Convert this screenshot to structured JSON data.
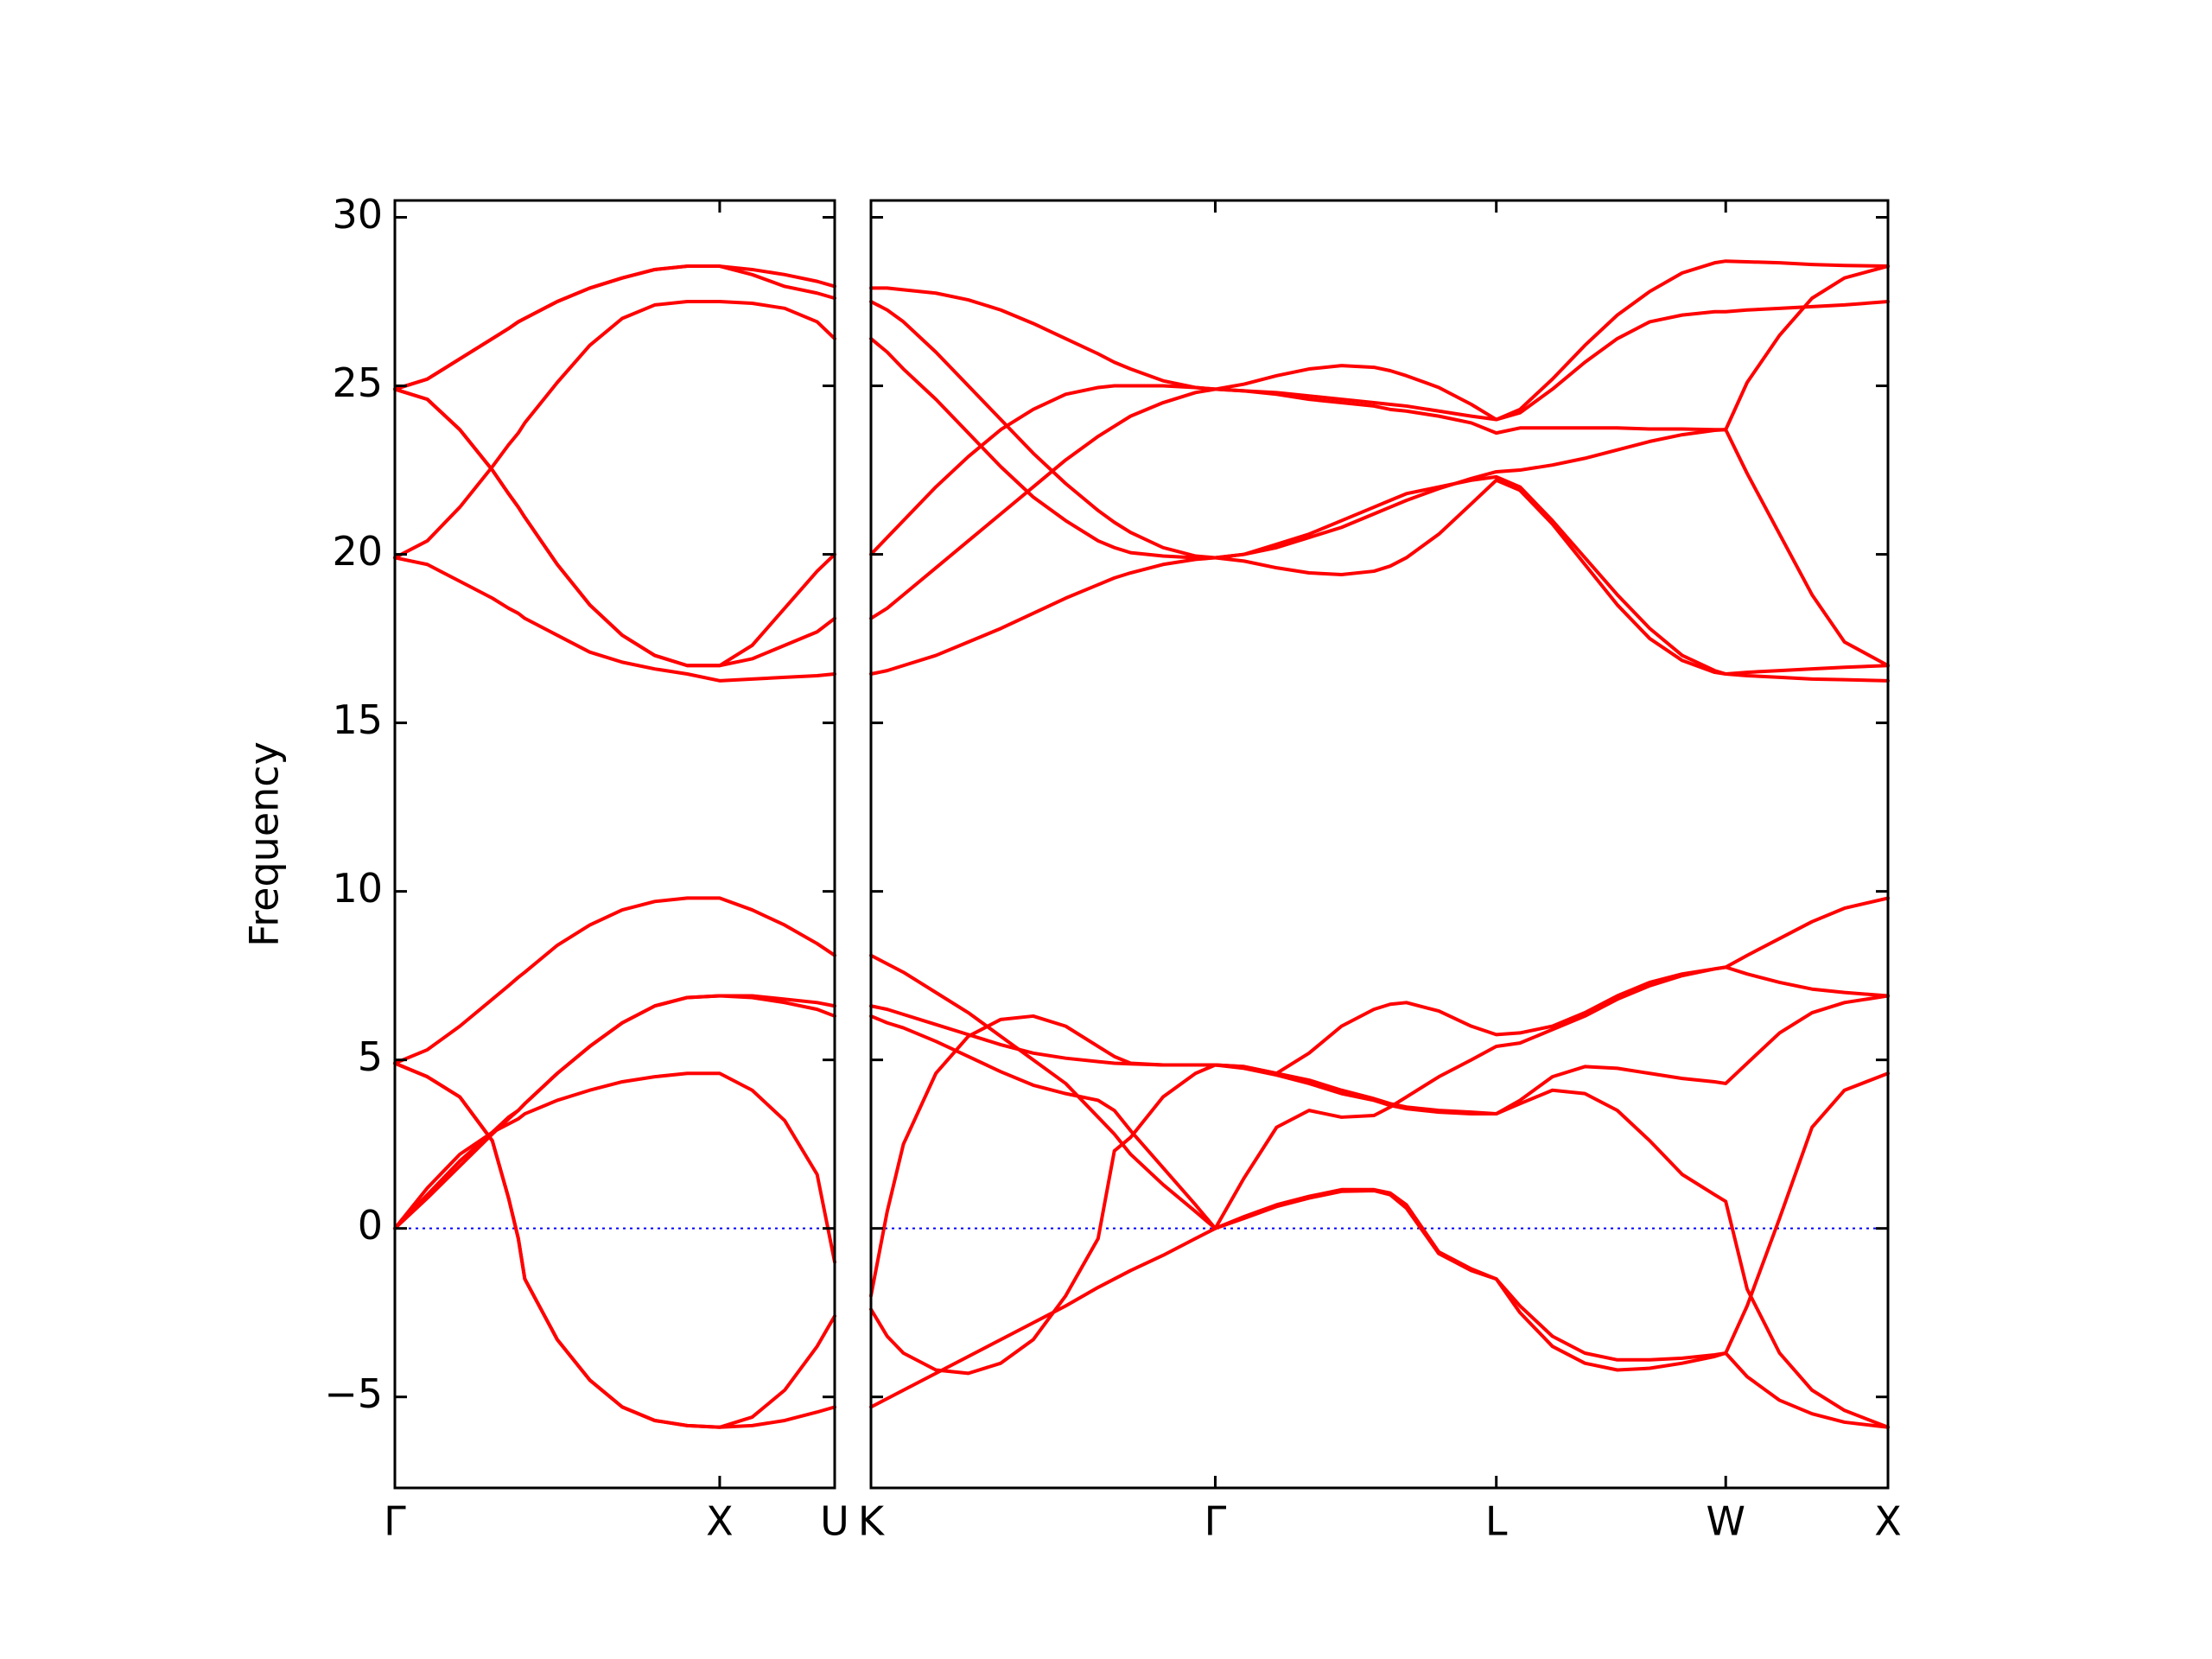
{
  "chart_data": [
    {
      "type": "line",
      "ylabel": "Frequency",
      "color": "#ff0000",
      "xlim": [
        0,
        1.354
      ],
      "ylim": [
        -7.7,
        30.5
      ],
      "xticks": [
        {
          "value": 0,
          "label": "Γ"
        },
        {
          "value": 1,
          "label": "X"
        },
        {
          "value": 1.354,
          "label": "U"
        }
      ],
      "yticks": [
        {
          "value": -5,
          "label": "−5"
        },
        0,
        5,
        10,
        15,
        20,
        25,
        30
      ],
      "hlines": [
        {
          "y": 0,
          "color": "#0000ff",
          "style": "dotted"
        }
      ],
      "x": [
        0,
        0.1,
        0.2,
        0.3,
        0.35,
        0.38,
        0.4,
        0.5,
        0.6,
        0.7,
        0.8,
        0.9,
        1.0,
        1.1,
        1.2,
        1.3,
        1.354
      ],
      "series": [
        {
          "values": [
            4.9,
            4.5,
            3.9,
            2.6,
            0.9,
            -0.3,
            -1.5,
            -3.3,
            -4.5,
            -5.3,
            -5.7,
            -5.85,
            -5.9,
            -5.85,
            -5.7,
            -5.45,
            -5.3
          ]
        },
        {
          "values": [
            4.9,
            4.5,
            3.9,
            2.6,
            0.9,
            -0.3,
            -1.5,
            -3.3,
            -4.5,
            -5.3,
            -5.7,
            -5.85,
            -5.9,
            -5.6,
            -4.8,
            -3.5,
            -2.6
          ]
        },
        {
          "values": [
            4.9,
            5.3,
            6.0,
            6.8,
            7.2,
            7.45,
            7.6,
            8.4,
            9.0,
            9.45,
            9.7,
            9.8,
            9.8,
            9.45,
            9.0,
            8.45,
            8.1
          ]
        },
        {
          "values": [
            0,
            1.0,
            2.0,
            2.85,
            3.3,
            3.5,
            3.7,
            4.6,
            5.4,
            6.1,
            6.6,
            6.85,
            6.9,
            6.85,
            6.7,
            6.5,
            6.3
          ]
        },
        {
          "values": [
            0,
            0.9,
            1.85,
            2.8,
            3.25,
            3.5,
            3.7,
            4.6,
            5.4,
            6.1,
            6.6,
            6.85,
            6.9,
            6.9,
            6.8,
            6.7,
            6.6
          ]
        },
        {
          "values": [
            0,
            1.2,
            2.2,
            2.85,
            3.1,
            3.25,
            3.4,
            3.8,
            4.1,
            4.35,
            4.5,
            4.6,
            4.6,
            4.1,
            3.2,
            1.6,
            -1.0
          ]
        },
        {
          "values": [
            24.9,
            25.2,
            25.8,
            26.4,
            26.7,
            26.9,
            27.0,
            27.5,
            27.9,
            28.2,
            28.45,
            28.55,
            28.55,
            28.45,
            28.3,
            28.1,
            27.95
          ]
        },
        {
          "values": [
            24.9,
            25.2,
            25.8,
            26.4,
            26.7,
            26.9,
            27.0,
            27.5,
            27.9,
            28.2,
            28.45,
            28.55,
            28.55,
            28.3,
            27.95,
            27.75,
            27.6
          ]
        },
        {
          "values": [
            19.9,
            20.4,
            21.4,
            22.6,
            23.25,
            23.6,
            23.9,
            25.1,
            26.2,
            27.0,
            27.4,
            27.5,
            27.5,
            27.45,
            27.3,
            26.9,
            26.4
          ]
        },
        {
          "values": [
            24.9,
            24.6,
            23.7,
            22.5,
            21.8,
            21.4,
            21.1,
            19.7,
            18.5,
            17.6,
            17.0,
            16.7,
            16.7,
            17.3,
            18.4,
            19.5,
            20.0
          ]
        },
        {
          "values": [
            24.9,
            24.6,
            23.7,
            22.5,
            21.8,
            21.4,
            21.1,
            19.7,
            18.5,
            17.6,
            17.0,
            16.7,
            16.7,
            16.9,
            17.3,
            17.7,
            18.1
          ]
        },
        {
          "values": [
            19.9,
            19.7,
            19.2,
            18.7,
            18.4,
            18.25,
            18.1,
            17.6,
            17.1,
            16.8,
            16.6,
            16.45,
            16.25,
            16.3,
            16.35,
            16.4,
            16.45
          ]
        }
      ]
    },
    {
      "type": "line",
      "color": "#ff0000",
      "xlim": [
        0,
        3.134
      ],
      "xticks": [
        {
          "value": 0,
          "label": "K"
        },
        {
          "value": 1.061,
          "label": "Γ"
        },
        {
          "value": 1.927,
          "label": "L"
        },
        {
          "value": 2.634,
          "label": "W"
        },
        {
          "value": 3.134,
          "label": "X"
        }
      ],
      "hlines": [
        {
          "y": 0,
          "color": "#0000ff",
          "style": "dotted"
        }
      ],
      "x": [
        0,
        0.05,
        0.1,
        0.2,
        0.3,
        0.4,
        0.5,
        0.6,
        0.7,
        0.75,
        0.8,
        0.9,
        1.0,
        1.061,
        1.15,
        1.25,
        1.35,
        1.45,
        1.55,
        1.6,
        1.65,
        1.75,
        1.85,
        1.927,
        2.0,
        2.1,
        2.2,
        2.3,
        2.4,
        2.5,
        2.6,
        2.634,
        2.7,
        2.8,
        2.9,
        3.0,
        3.134
      ],
      "series": [
        {
          "values": [
            27.9,
            27.9,
            27.85,
            27.75,
            27.55,
            27.25,
            26.85,
            26.4,
            25.95,
            25.7,
            25.5,
            25.15,
            24.95,
            24.9,
            25.05,
            25.3,
            25.5,
            25.6,
            25.55,
            25.45,
            25.3,
            24.95,
            24.45,
            24.0,
            24.3,
            25.2,
            26.2,
            27.1,
            27.8,
            28.35,
            28.65,
            28.7,
            28.68,
            28.65,
            28.6,
            28.57,
            28.55
          ]
        },
        {
          "values": [
            27.5,
            27.25,
            26.9,
            26.0,
            25.0,
            24.0,
            23.0,
            22.1,
            21.3,
            20.95,
            20.65,
            20.2,
            19.95,
            19.9,
            19.8,
            19.6,
            19.45,
            19.4,
            19.5,
            19.65,
            19.9,
            20.6,
            21.5,
            22.2,
            21.9,
            20.9,
            19.7,
            18.5,
            17.5,
            16.85,
            16.5,
            16.45,
            16.5,
            16.55,
            16.6,
            16.65,
            16.7
          ]
        },
        {
          "values": [
            26.4,
            26.0,
            25.5,
            24.6,
            23.6,
            22.6,
            21.7,
            21.0,
            20.4,
            20.2,
            20.05,
            19.95,
            19.9,
            19.9,
            20.0,
            20.3,
            20.6,
            21.0,
            21.4,
            21.6,
            21.8,
            22.0,
            22.2,
            22.3,
            22.0,
            21.0,
            19.9,
            18.8,
            17.8,
            17.0,
            16.55,
            16.45,
            16.4,
            16.35,
            16.3,
            16.28,
            16.25
          ]
        },
        {
          "values": [
            20.0,
            20.5,
            21.0,
            22.0,
            22.9,
            23.7,
            24.3,
            24.75,
            24.95,
            25.0,
            25.0,
            25.0,
            24.95,
            24.9,
            24.85,
            24.8,
            24.7,
            24.6,
            24.5,
            24.45,
            24.4,
            24.25,
            24.1,
            24.0,
            24.2,
            24.9,
            25.7,
            26.4,
            26.9,
            27.1,
            27.2,
            27.2,
            27.25,
            27.3,
            27.35,
            27.4,
            27.5
          ]
        },
        {
          "values": [
            18.1,
            18.4,
            18.8,
            19.6,
            20.4,
            21.2,
            22.0,
            22.8,
            23.5,
            23.8,
            24.1,
            24.5,
            24.8,
            24.9,
            24.85,
            24.75,
            24.6,
            24.5,
            24.4,
            24.3,
            24.25,
            24.1,
            23.9,
            23.6,
            23.75,
            23.75,
            23.75,
            23.75,
            23.72,
            23.72,
            23.7,
            23.7,
            25.1,
            26.5,
            27.6,
            28.2,
            28.55
          ]
        },
        {
          "values": [
            16.45,
            16.55,
            16.7,
            17.0,
            17.4,
            17.8,
            18.25,
            18.7,
            19.1,
            19.3,
            19.45,
            19.7,
            19.85,
            19.9,
            20.0,
            20.2,
            20.5,
            20.8,
            21.2,
            21.4,
            21.6,
            21.95,
            22.25,
            22.45,
            22.5,
            22.65,
            22.85,
            23.1,
            23.35,
            23.55,
            23.68,
            23.7,
            22.4,
            20.6,
            18.8,
            17.4,
            16.7
          ]
        },
        {
          "values": [
            8.1,
            7.85,
            7.6,
            7.0,
            6.4,
            5.7,
            5.0,
            4.3,
            3.3,
            2.8,
            2.2,
            1.3,
            0.5,
            0,
            1.5,
            3.0,
            3.5,
            3.3,
            3.35,
            3.6,
            3.9,
            4.5,
            5.0,
            5.4,
            5.5,
            5.9,
            6.3,
            6.8,
            7.2,
            7.5,
            7.7,
            7.75,
            7.55,
            7.3,
            7.1,
            7.0,
            6.9
          ]
        },
        {
          "values": [
            6.3,
            6.1,
            5.95,
            5.55,
            5.1,
            4.65,
            4.25,
            4.0,
            3.8,
            3.5,
            2.9,
            1.8,
            0.7,
            0,
            0.35,
            0.7,
            0.95,
            1.15,
            1.15,
            1.05,
            0.7,
            -0.7,
            -1.2,
            -1.5,
            -2.3,
            -3.2,
            -3.7,
            -3.9,
            -3.9,
            -3.85,
            -3.75,
            -3.7,
            -2.3,
            0.3,
            3.0,
            4.1,
            4.6
          ]
        },
        {
          "values": [
            6.6,
            6.5,
            6.35,
            6.05,
            5.75,
            5.45,
            5.2,
            5.05,
            4.95,
            4.9,
            4.88,
            4.85,
            4.85,
            4.85,
            4.8,
            4.6,
            5.2,
            6.0,
            6.5,
            6.65,
            6.7,
            6.45,
            6.0,
            5.75,
            5.8,
            6.0,
            6.4,
            6.9,
            7.3,
            7.55,
            7.7,
            7.75,
            8.1,
            8.6,
            9.1,
            9.5,
            9.8
          ]
        },
        {
          "values": [
            -2.0,
            0.5,
            2.5,
            4.6,
            5.7,
            6.2,
            6.3,
            6.0,
            5.4,
            5.1,
            4.9,
            4.85,
            4.85,
            4.85,
            4.75,
            4.55,
            4.3,
            4.0,
            3.8,
            3.65,
            3.55,
            3.45,
            3.4,
            3.4,
            3.8,
            4.5,
            4.8,
            4.75,
            4.6,
            4.45,
            4.35,
            4.3,
            4.9,
            5.8,
            6.4,
            6.7,
            6.9
          ]
        },
        {
          "values": [
            -2.4,
            -3.2,
            -3.7,
            -4.2,
            -4.3,
            -4.0,
            -3.3,
            -2.0,
            -0.3,
            2.3,
            2.7,
            3.9,
            4.6,
            4.85,
            4.8,
            4.6,
            4.4,
            4.1,
            3.85,
            3.7,
            3.6,
            3.5,
            3.45,
            3.4,
            3.7,
            4.1,
            4.0,
            3.5,
            2.6,
            1.6,
            1.0,
            0.8,
            -1.8,
            -3.7,
            -4.8,
            -5.4,
            -5.9
          ]
        },
        {
          "values": [
            -5.3,
            -5.05,
            -4.8,
            -4.3,
            -3.8,
            -3.3,
            -2.8,
            -2.3,
            -1.75,
            -1.5,
            -1.25,
            -0.8,
            -0.3,
            0,
            0.3,
            0.65,
            0.9,
            1.1,
            1.12,
            1.0,
            0.6,
            -0.75,
            -1.25,
            -1.5,
            -2.5,
            -3.5,
            -4.0,
            -4.2,
            -4.15,
            -4.0,
            -3.8,
            -3.7,
            -4.4,
            -5.1,
            -5.5,
            -5.75,
            -5.9
          ]
        }
      ]
    }
  ]
}
